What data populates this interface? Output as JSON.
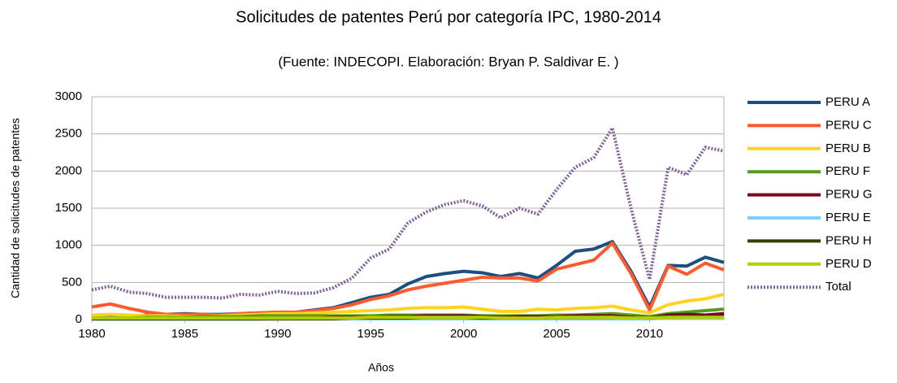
{
  "chart_data": {
    "type": "line",
    "title": "Solicitudes de patentes Perú por categoría IPC, 1980-2014",
    "subtitle": "(Fuente: INDECOPI. Elaboración: Bryan P. Saldivar E. )",
    "xlabel": "Años",
    "ylabel": "Cantidad de solicitudes de patentes",
    "x": [
      1980,
      1981,
      1982,
      1983,
      1984,
      1985,
      1986,
      1987,
      1988,
      1989,
      1990,
      1991,
      1992,
      1993,
      1994,
      1995,
      1996,
      1997,
      1998,
      1999,
      2000,
      2001,
      2002,
      2003,
      2004,
      2005,
      2006,
      2007,
      2008,
      2009,
      2010,
      2011,
      2012,
      2013,
      2014
    ],
    "xlim": [
      1980,
      2014
    ],
    "xticks": [
      1980,
      1985,
      1990,
      1995,
      2000,
      2005,
      2010
    ],
    "ylim": [
      0,
      3000
    ],
    "yticks": [
      0,
      500,
      1000,
      1500,
      2000,
      2500,
      3000
    ],
    "grid": true,
    "legend": "right",
    "series": [
      {
        "name": "PERU A",
        "color": "#1c4f80",
        "values": [
          50,
          50,
          40,
          60,
          70,
          80,
          70,
          70,
          80,
          90,
          90,
          100,
          130,
          160,
          230,
          300,
          340,
          480,
          580,
          620,
          650,
          630,
          580,
          620,
          560,
          730,
          920,
          950,
          1050,
          650,
          170,
          730,
          720,
          840,
          770
        ]
      },
      {
        "name": "PERU C",
        "color": "#ff5a2b",
        "values": [
          170,
          210,
          150,
          100,
          70,
          70,
          70,
          60,
          80,
          90,
          100,
          100,
          120,
          150,
          200,
          270,
          320,
          400,
          450,
          490,
          530,
          570,
          560,
          560,
          520,
          680,
          740,
          800,
          1030,
          620,
          130,
          720,
          610,
          760,
          670
        ]
      },
      {
        "name": "PERU B",
        "color": "#ffd320",
        "values": [
          60,
          70,
          60,
          50,
          50,
          40,
          40,
          50,
          60,
          70,
          80,
          80,
          90,
          100,
          110,
          120,
          130,
          150,
          160,
          160,
          170,
          140,
          110,
          110,
          140,
          130,
          150,
          160,
          180,
          130,
          90,
          200,
          250,
          280,
          340
        ]
      },
      {
        "name": "PERU F",
        "color": "#579d1c",
        "values": [
          10,
          10,
          20,
          30,
          30,
          30,
          40,
          40,
          40,
          50,
          50,
          50,
          50,
          50,
          50,
          50,
          60,
          60,
          60,
          60,
          60,
          50,
          50,
          50,
          50,
          60,
          60,
          70,
          80,
          60,
          40,
          80,
          100,
          120,
          140
        ]
      },
      {
        "name": "PERU G",
        "color": "#7e0021",
        "values": [
          10,
          10,
          10,
          10,
          10,
          10,
          10,
          10,
          20,
          20,
          20,
          20,
          20,
          30,
          30,
          30,
          40,
          40,
          50,
          50,
          50,
          40,
          30,
          40,
          40,
          40,
          50,
          50,
          50,
          30,
          20,
          60,
          70,
          60,
          80
        ]
      },
      {
        "name": "PERU E",
        "color": "#83caff",
        "values": [
          5,
          5,
          5,
          5,
          5,
          5,
          5,
          5,
          5,
          5,
          10,
          10,
          10,
          10,
          10,
          10,
          10,
          10,
          10,
          10,
          10,
          10,
          10,
          10,
          10,
          10,
          10,
          10,
          10,
          10,
          10,
          20,
          20,
          20,
          20
        ]
      },
      {
        "name": "PERU H",
        "color": "#314004",
        "values": [
          10,
          10,
          10,
          10,
          10,
          10,
          10,
          10,
          10,
          10,
          10,
          10,
          10,
          10,
          20,
          20,
          20,
          20,
          30,
          30,
          30,
          20,
          20,
          20,
          20,
          30,
          30,
          30,
          30,
          30,
          20,
          40,
          40,
          40,
          40
        ]
      },
      {
        "name": "PERU D",
        "color": "#aecf00",
        "values": [
          20,
          20,
          20,
          20,
          20,
          20,
          20,
          20,
          20,
          20,
          20,
          20,
          20,
          20,
          20,
          30,
          30,
          30,
          30,
          30,
          30,
          30,
          20,
          20,
          20,
          30,
          30,
          30,
          30,
          20,
          20,
          30,
          30,
          30,
          30
        ]
      },
      {
        "name": "Total",
        "color": "#7f5f9c",
        "style": "dotted",
        "values": [
          400,
          450,
          370,
          350,
          300,
          300,
          300,
          290,
          340,
          330,
          380,
          350,
          360,
          430,
          560,
          830,
          950,
          1300,
          1450,
          1550,
          1600,
          1530,
          1370,
          1500,
          1420,
          1750,
          2050,
          2180,
          2580,
          1500,
          540,
          2050,
          1950,
          2320,
          2270
        ]
      }
    ]
  }
}
